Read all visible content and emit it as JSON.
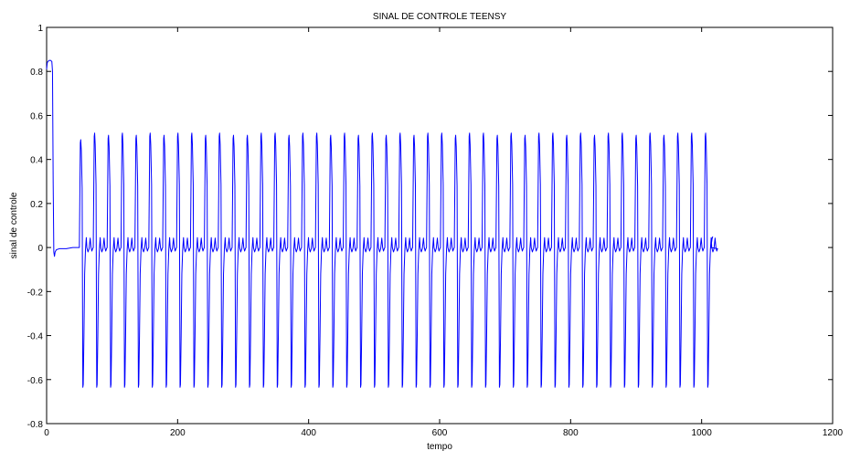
{
  "chart_data": {
    "type": "line",
    "title": "SINAL DE CONTROLE TEENSY",
    "xlabel": "tempo",
    "ylabel": "sinal de controle",
    "xlim": [
      0,
      1200
    ],
    "ylim": [
      -0.8,
      1
    ],
    "xticks": [
      0,
      200,
      400,
      600,
      800,
      1000,
      1200
    ],
    "yticks": [
      -0.8,
      -0.6,
      -0.4,
      -0.2,
      0,
      0.2,
      0.4,
      0.6,
      0.8,
      1
    ],
    "grid": false,
    "legend": "none",
    "series": [
      {
        "color": "#0000ff",
        "initial_segment": {
          "x": [
            0,
            1,
            2,
            4,
            6,
            8,
            9,
            10,
            11,
            12,
            13,
            15,
            20,
            30,
            40,
            50
          ],
          "y": [
            0.81,
            0.84,
            0.845,
            0.85,
            0.85,
            0.845,
            0.8,
            0.3,
            -0.02,
            -0.04,
            -0.02,
            -0.01,
            -0.005,
            -0.005,
            0.0,
            0.0
          ]
        },
        "oscillation": {
          "start_x": 50,
          "end_x": 1017,
          "period_x": 21.2,
          "cycles": 46,
          "peak_values": [
            0.49,
            0.52,
            0.51,
            0.52,
            0.51,
            0.52,
            0.51,
            0.52,
            0.52,
            0.51,
            0.52,
            0.51,
            0.51,
            0.52,
            0.52,
            0.51,
            0.52,
            0.52,
            0.51,
            0.52,
            0.51,
            0.52,
            0.51,
            0.52,
            0.51,
            0.52,
            0.52,
            0.51,
            0.52,
            0.52,
            0.51,
            0.52,
            0.51,
            0.52,
            0.52,
            0.51,
            0.52,
            0.51,
            0.52,
            0.52,
            0.51,
            0.52,
            0.51,
            0.52,
            0.52,
            0.52
          ],
          "trough_value": -0.635,
          "secondary_ripple_peak": 0.045,
          "secondary_ripple_dip": -0.02,
          "final_value": 0.05
        }
      }
    ]
  }
}
